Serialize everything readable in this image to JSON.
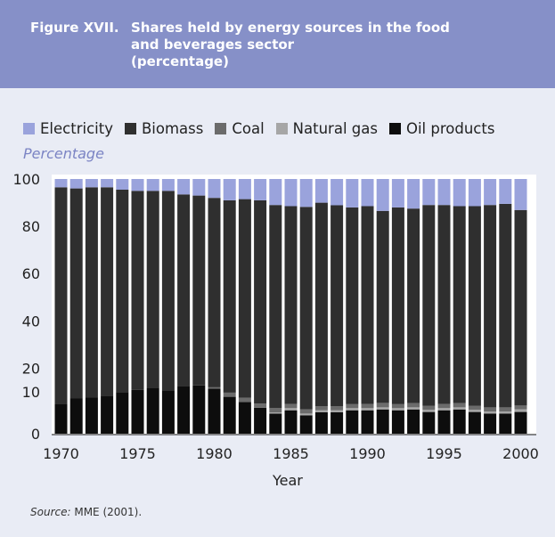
{
  "figure": {
    "label": "Figure XVII.",
    "title_lines": [
      "Shares held by energy sources in the food",
      "and beverages sector",
      "(percentage)"
    ]
  },
  "legend": [
    {
      "name": "Electricity",
      "color": "#9aa3dc"
    },
    {
      "name": "Biomass",
      "color": "#2f2f2f"
    },
    {
      "name": "Coal",
      "color": "#6b6b6b"
    },
    {
      "name": "Natural gas",
      "color": "#a6a6a6"
    },
    {
      "name": "Oil products",
      "color": "#0d0d0d"
    }
  ],
  "axis": {
    "y_unit_label": "Percentage",
    "x_title": "Year"
  },
  "source": {
    "label": "Source:",
    "text": " MME (2001)."
  },
  "chart_data": {
    "type": "bar",
    "stacked": true,
    "ylabel": "Percentage",
    "xlabel": "Year",
    "y_ticks": [
      0,
      10,
      20,
      40,
      60,
      80,
      100
    ],
    "y_scale_note": "piecewise linear: 0-10 expanded, 10-100 linear",
    "x_tick_labels": [
      "1970",
      "1975",
      "1980",
      "1985",
      "1990",
      "1995",
      "2000"
    ],
    "categories": [
      1970,
      1971,
      1972,
      1973,
      1974,
      1975,
      1976,
      1977,
      1978,
      1979,
      1980,
      1981,
      1982,
      1983,
      1984,
      1985,
      1986,
      1987,
      1988,
      1989,
      1990,
      1991,
      1992,
      1993,
      1994,
      1995,
      1996,
      1997,
      1998,
      1999,
      2000
    ],
    "series": [
      {
        "name": "Oil products",
        "values": [
          7.2,
          8.4,
          8.7,
          9.1,
          9.8,
          10.8,
          11.5,
          10.6,
          12.4,
          12.7,
          11.4,
          8.8,
          7.6,
          6.2,
          4.8,
          5.6,
          4.4,
          5.1,
          5.1,
          5.6,
          5.6,
          5.8,
          5.6,
          5.8,
          5.2,
          5.6,
          5.8,
          5.2,
          4.8,
          4.8,
          5.2
        ]
      },
      {
        "name": "Natural gas",
        "values": [
          0,
          0,
          0,
          0,
          0,
          0,
          0,
          0,
          0,
          0,
          0,
          0,
          0,
          0,
          0.3,
          0.5,
          0.4,
          0.5,
          0.5,
          0.5,
          0.5,
          0.5,
          0.5,
          0.5,
          0.5,
          0.5,
          0.5,
          0.5,
          0.5,
          0.5,
          0.6
        ]
      },
      {
        "name": "Coal",
        "values": [
          0,
          0,
          0,
          0,
          0,
          0,
          0,
          0,
          0,
          0,
          0.5,
          1,
          1,
          1,
          1,
          1,
          1,
          1,
          1,
          1,
          1,
          1,
          1,
          1,
          1,
          1,
          1,
          1,
          1,
          1,
          1
        ]
      },
      {
        "name": "Biomass",
        "values": [
          89.3,
          87.6,
          87.8,
          87.4,
          85.7,
          84.2,
          83.5,
          84.4,
          81.1,
          80.3,
          80.1,
          81.2,
          82.9,
          83.8,
          82.9,
          81.4,
          82.4,
          83.4,
          82.3,
          80.9,
          81.4,
          79.2,
          80.9,
          80.2,
          82.3,
          81.9,
          81.2,
          81.8,
          82.7,
          83.2,
          80.1
        ]
      },
      {
        "name": "Electricity",
        "values": [
          3.5,
          4,
          3.5,
          3.5,
          4.5,
          5,
          5,
          5,
          6.5,
          7,
          8,
          9,
          8.5,
          9,
          11,
          11.5,
          11.8,
          10,
          11.1,
          12,
          11.5,
          13.5,
          12,
          12.5,
          11,
          11,
          11.5,
          11.5,
          11,
          10.5,
          13.1
        ]
      }
    ]
  }
}
